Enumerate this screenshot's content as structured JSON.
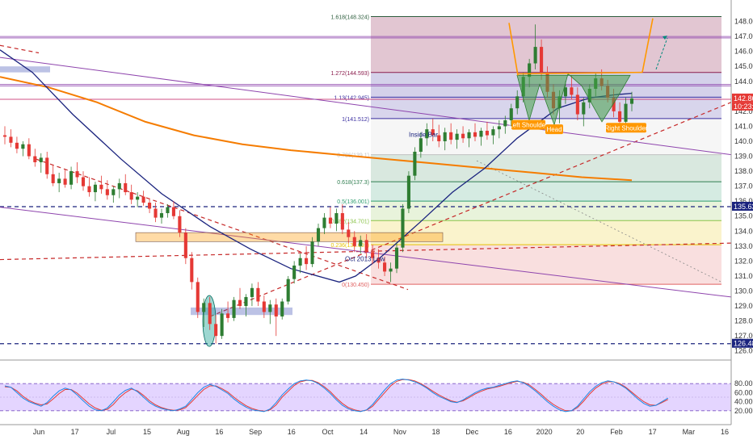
{
  "chart_data": {
    "type": "candlestick",
    "price_axis": {
      "ticks": [
        "148.000",
        "147.000",
        "146.000",
        "145.000",
        "144.000",
        "143.000",
        "142.000",
        "141.000",
        "140.000",
        "139.000",
        "138.000",
        "137.000",
        "136.000",
        "135.000",
        "134.000",
        "133.000",
        "132.000",
        "131.000",
        "130.000",
        "129.000",
        "128.000",
        "127.000",
        "126.000"
      ],
      "range": [
        125.5,
        149.0
      ],
      "current_price": "142.860",
      "timer": "10:23:44",
      "level_tags": [
        "135.632",
        "126.485"
      ],
      "level_values": [
        135.632,
        126.485
      ]
    },
    "time_axis": {
      "labels": [
        "Jun",
        "17",
        "Jul",
        "15",
        "Aug",
        "16",
        "Sep",
        "16",
        "Oct",
        "14",
        "Nov",
        "18",
        "Dec",
        "16",
        "2020",
        "20",
        "Feb",
        "17",
        "Mar",
        "16"
      ]
    },
    "fibonacci": [
      {
        "label": "1.618(148.324)",
        "value": 148.324
      },
      {
        "label": "1.272(144.593)",
        "value": 144.593
      },
      {
        "label": "1.13(142.945)",
        "value": 142.945
      },
      {
        "label": "1(141.512)",
        "value": 141.512
      },
      {
        "label": "0.786(139.1)",
        "value": 139.1
      },
      {
        "label": "0.618(137.3)",
        "value": 137.3
      },
      {
        "label": "0.5(136.001)",
        "value": 136.001
      },
      {
        "label": "0.382(134.701)",
        "value": 134.701
      },
      {
        "label": "0.236(133.091)",
        "value": 133.091
      },
      {
        "label": "0(130.450)",
        "value": 130.45
      }
    ],
    "annotations": {
      "inside_bar": "Inside Bar",
      "low_label": "Oct 2013 Low",
      "left_shoulder": "Left Shoulder",
      "head": "Head",
      "right_shoulder": "Right Shoulder"
    },
    "candles": [
      {
        "o": 140.4,
        "h": 141.0,
        "l": 139.8,
        "c": 140.3
      },
      {
        "o": 140.3,
        "h": 140.8,
        "l": 139.6,
        "c": 139.9
      },
      {
        "o": 139.9,
        "h": 140.3,
        "l": 139.2,
        "c": 139.5
      },
      {
        "o": 139.5,
        "h": 140.0,
        "l": 139.0,
        "c": 139.8
      },
      {
        "o": 139.8,
        "h": 140.2,
        "l": 138.8,
        "c": 139.0
      },
      {
        "o": 139.0,
        "h": 139.5,
        "l": 138.3,
        "c": 138.6
      },
      {
        "o": 138.6,
        "h": 139.2,
        "l": 137.9,
        "c": 138.9
      },
      {
        "o": 138.9,
        "h": 139.3,
        "l": 137.5,
        "c": 137.8
      },
      {
        "o": 137.8,
        "h": 138.4,
        "l": 137.0,
        "c": 137.2
      },
      {
        "o": 137.2,
        "h": 137.9,
        "l": 136.6,
        "c": 137.5
      },
      {
        "o": 137.5,
        "h": 138.1,
        "l": 136.9,
        "c": 137.1
      },
      {
        "o": 137.1,
        "h": 138.3,
        "l": 136.8,
        "c": 138.0
      },
      {
        "o": 138.0,
        "h": 138.6,
        "l": 137.2,
        "c": 137.6
      },
      {
        "o": 137.6,
        "h": 138.0,
        "l": 136.7,
        "c": 137.0
      },
      {
        "o": 137.0,
        "h": 137.6,
        "l": 136.3,
        "c": 136.6
      },
      {
        "o": 136.6,
        "h": 137.3,
        "l": 136.0,
        "c": 137.1
      },
      {
        "o": 137.1,
        "h": 137.7,
        "l": 136.5,
        "c": 136.8
      },
      {
        "o": 136.8,
        "h": 137.4,
        "l": 136.1,
        "c": 136.4
      },
      {
        "o": 136.4,
        "h": 137.0,
        "l": 135.9,
        "c": 136.8
      },
      {
        "o": 136.8,
        "h": 137.5,
        "l": 136.2,
        "c": 137.2
      },
      {
        "o": 137.2,
        "h": 137.8,
        "l": 136.4,
        "c": 136.6
      },
      {
        "o": 136.6,
        "h": 137.1,
        "l": 135.8,
        "c": 136.1
      },
      {
        "o": 136.1,
        "h": 136.6,
        "l": 135.6,
        "c": 136.3
      },
      {
        "o": 136.3,
        "h": 136.7,
        "l": 135.7,
        "c": 135.9
      },
      {
        "o": 135.9,
        "h": 136.2,
        "l": 135.2,
        "c": 135.5
      },
      {
        "o": 135.5,
        "h": 135.9,
        "l": 134.6,
        "c": 134.9
      },
      {
        "o": 134.9,
        "h": 135.5,
        "l": 134.5,
        "c": 135.2
      },
      {
        "o": 135.2,
        "h": 135.8,
        "l": 134.9,
        "c": 135.6
      },
      {
        "o": 135.6,
        "h": 136.0,
        "l": 134.8,
        "c": 135.0
      },
      {
        "o": 135.0,
        "h": 135.4,
        "l": 133.6,
        "c": 133.9
      },
      {
        "o": 133.9,
        "h": 134.2,
        "l": 131.8,
        "c": 132.2
      },
      {
        "o": 132.2,
        "h": 132.6,
        "l": 130.1,
        "c": 130.6
      },
      {
        "o": 130.6,
        "h": 130.9,
        "l": 128.2,
        "c": 128.6
      },
      {
        "o": 128.6,
        "h": 129.5,
        "l": 127.6,
        "c": 129.2
      },
      {
        "o": 129.2,
        "h": 129.6,
        "l": 127.4,
        "c": 127.8
      },
      {
        "o": 127.8,
        "h": 128.4,
        "l": 126.5,
        "c": 127.0
      },
      {
        "o": 127.0,
        "h": 128.8,
        "l": 126.8,
        "c": 128.5
      },
      {
        "o": 128.5,
        "h": 129.3,
        "l": 127.9,
        "c": 128.2
      },
      {
        "o": 128.2,
        "h": 129.6,
        "l": 128.0,
        "c": 129.4
      },
      {
        "o": 129.4,
        "h": 130.2,
        "l": 128.8,
        "c": 129.0
      },
      {
        "o": 129.0,
        "h": 129.8,
        "l": 128.3,
        "c": 129.6
      },
      {
        "o": 129.6,
        "h": 130.5,
        "l": 129.0,
        "c": 130.2
      },
      {
        "o": 130.2,
        "h": 130.6,
        "l": 129.0,
        "c": 129.3
      },
      {
        "o": 129.3,
        "h": 129.7,
        "l": 128.2,
        "c": 128.6
      },
      {
        "o": 128.6,
        "h": 129.4,
        "l": 127.8,
        "c": 129.1
      },
      {
        "o": 129.1,
        "h": 129.5,
        "l": 127.0,
        "c": 128.3
      },
      {
        "o": 128.3,
        "h": 129.5,
        "l": 128.1,
        "c": 129.3
      },
      {
        "o": 129.3,
        "h": 131.0,
        "l": 129.1,
        "c": 130.8
      },
      {
        "o": 130.8,
        "h": 132.0,
        "l": 130.5,
        "c": 131.7
      },
      {
        "o": 131.7,
        "h": 132.5,
        "l": 131.2,
        "c": 132.2
      },
      {
        "o": 132.2,
        "h": 133.0,
        "l": 131.4,
        "c": 131.8
      },
      {
        "o": 131.8,
        "h": 133.6,
        "l": 131.6,
        "c": 133.3
      },
      {
        "o": 133.3,
        "h": 134.5,
        "l": 133.0,
        "c": 134.2
      },
      {
        "o": 134.2,
        "h": 135.2,
        "l": 133.8,
        "c": 134.9
      },
      {
        "o": 134.9,
        "h": 135.6,
        "l": 134.2,
        "c": 134.5
      },
      {
        "o": 134.5,
        "h": 135.5,
        "l": 134.0,
        "c": 135.2
      },
      {
        "o": 135.2,
        "h": 135.8,
        "l": 133.8,
        "c": 134.1
      },
      {
        "o": 134.1,
        "h": 134.6,
        "l": 133.2,
        "c": 133.6
      },
      {
        "o": 133.6,
        "h": 134.0,
        "l": 132.6,
        "c": 133.0
      },
      {
        "o": 133.0,
        "h": 133.7,
        "l": 132.5,
        "c": 133.4
      },
      {
        "o": 133.4,
        "h": 133.8,
        "l": 132.2,
        "c": 132.6
      },
      {
        "o": 132.6,
        "h": 133.1,
        "l": 131.8,
        "c": 132.2
      },
      {
        "o": 132.2,
        "h": 132.8,
        "l": 131.5,
        "c": 131.9
      },
      {
        "o": 131.9,
        "h": 132.3,
        "l": 131.0,
        "c": 131.3
      },
      {
        "o": 131.3,
        "h": 131.9,
        "l": 130.6,
        "c": 131.5
      },
      {
        "o": 131.5,
        "h": 133.2,
        "l": 131.2,
        "c": 132.9
      },
      {
        "o": 132.9,
        "h": 135.8,
        "l": 132.6,
        "c": 135.5
      },
      {
        "o": 135.5,
        "h": 138.0,
        "l": 135.2,
        "c": 137.7
      },
      {
        "o": 137.7,
        "h": 139.6,
        "l": 137.4,
        "c": 139.3
      },
      {
        "o": 139.3,
        "h": 140.6,
        "l": 138.9,
        "c": 140.2
      },
      {
        "o": 140.2,
        "h": 141.2,
        "l": 139.7,
        "c": 140.8
      },
      {
        "o": 140.8,
        "h": 141.5,
        "l": 140.0,
        "c": 140.4
      },
      {
        "o": 140.4,
        "h": 141.1,
        "l": 139.6,
        "c": 140.0
      },
      {
        "o": 140.0,
        "h": 140.9,
        "l": 139.4,
        "c": 140.6
      },
      {
        "o": 140.6,
        "h": 141.2,
        "l": 139.8,
        "c": 140.1
      },
      {
        "o": 140.1,
        "h": 140.8,
        "l": 139.5,
        "c": 140.5
      },
      {
        "o": 140.5,
        "h": 141.0,
        "l": 139.9,
        "c": 140.2
      },
      {
        "o": 140.2,
        "h": 140.8,
        "l": 139.6,
        "c": 140.6
      },
      {
        "o": 140.6,
        "h": 141.2,
        "l": 140.0,
        "c": 140.3
      },
      {
        "o": 140.3,
        "h": 140.9,
        "l": 139.7,
        "c": 140.7
      },
      {
        "o": 140.7,
        "h": 141.3,
        "l": 140.1,
        "c": 140.4
      },
      {
        "o": 140.4,
        "h": 141.0,
        "l": 139.8,
        "c": 140.8
      },
      {
        "o": 140.8,
        "h": 141.4,
        "l": 140.2,
        "c": 141.0
      },
      {
        "o": 141.0,
        "h": 141.7,
        "l": 140.5,
        "c": 141.4
      },
      {
        "o": 141.4,
        "h": 142.5,
        "l": 141.0,
        "c": 142.2
      },
      {
        "o": 142.2,
        "h": 143.4,
        "l": 141.8,
        "c": 143.0
      },
      {
        "o": 143.0,
        "h": 144.6,
        "l": 142.6,
        "c": 144.3
      },
      {
        "o": 144.3,
        "h": 145.5,
        "l": 143.6,
        "c": 145.2
      },
      {
        "o": 145.2,
        "h": 147.8,
        "l": 144.8,
        "c": 146.3
      },
      {
        "o": 146.3,
        "h": 146.8,
        "l": 144.1,
        "c": 144.6
      },
      {
        "o": 144.6,
        "h": 145.0,
        "l": 142.9,
        "c": 143.3
      },
      {
        "o": 143.3,
        "h": 143.8,
        "l": 141.8,
        "c": 142.2
      },
      {
        "o": 142.2,
        "h": 143.4,
        "l": 141.2,
        "c": 143.0
      },
      {
        "o": 143.0,
        "h": 144.0,
        "l": 142.5,
        "c": 143.6
      },
      {
        "o": 143.6,
        "h": 144.4,
        "l": 142.8,
        "c": 143.1
      },
      {
        "o": 143.1,
        "h": 143.6,
        "l": 141.4,
        "c": 141.8
      },
      {
        "o": 141.8,
        "h": 142.9,
        "l": 141.0,
        "c": 142.6
      },
      {
        "o": 142.6,
        "h": 143.8,
        "l": 142.2,
        "c": 143.5
      },
      {
        "o": 143.5,
        "h": 144.6,
        "l": 143.0,
        "c": 144.2
      },
      {
        "o": 144.2,
        "h": 144.8,
        "l": 143.4,
        "c": 143.7
      },
      {
        "o": 143.7,
        "h": 144.1,
        "l": 142.6,
        "c": 142.9
      },
      {
        "o": 142.9,
        "h": 143.5,
        "l": 141.6,
        "c": 142.0
      },
      {
        "o": 142.0,
        "h": 142.6,
        "l": 140.9,
        "c": 141.3
      },
      {
        "o": 141.3,
        "h": 142.9,
        "l": 141.0,
        "c": 142.5
      },
      {
        "o": 142.5,
        "h": 143.3,
        "l": 142.0,
        "c": 142.86
      }
    ],
    "stochastic": {
      "axis_ticks": [
        "80.00",
        "60.00",
        "40.00",
        "20.00"
      ],
      "range": [
        0,
        100
      ],
      "k": [
        75,
        72,
        60,
        48,
        40,
        35,
        30,
        38,
        52,
        64,
        70,
        66,
        55,
        42,
        30,
        22,
        20,
        26,
        40,
        55,
        65,
        70,
        62,
        50,
        38,
        30,
        25,
        22,
        20,
        24,
        30,
        45,
        60,
        72,
        78,
        74,
        66,
        58,
        46,
        36,
        28,
        22,
        20,
        18,
        24,
        38,
        55,
        68,
        80,
        86,
        88,
        86,
        80,
        70,
        58,
        44,
        32,
        24,
        20,
        18,
        22,
        34,
        50,
        66,
        80,
        88,
        90,
        88,
        84,
        78,
        70,
        60,
        52,
        46,
        40,
        38,
        44,
        52,
        60,
        66,
        70,
        72,
        76,
        80,
        84,
        86,
        82,
        74,
        64,
        52,
        40,
        30,
        22,
        18,
        20,
        30,
        46,
        62,
        74,
        82,
        86,
        84,
        78,
        70,
        58,
        46,
        36,
        30,
        32,
        40,
        48
      ],
      "d": [
        73,
        72,
        64,
        52,
        43,
        37,
        33,
        35,
        46,
        58,
        67,
        67,
        59,
        47,
        35,
        26,
        21,
        23,
        34,
        49,
        60,
        68,
        64,
        54,
        42,
        33,
        27,
        23,
        21,
        22,
        27,
        40,
        54,
        67,
        75,
        75,
        69,
        61,
        50,
        40,
        31,
        25,
        21,
        19,
        22,
        33,
        50,
        63,
        76,
        84,
        87,
        87,
        82,
        73,
        62,
        48,
        36,
        27,
        22,
        19,
        21,
        30,
        45,
        60,
        75,
        85,
        89,
        89,
        86,
        80,
        72,
        63,
        55,
        48,
        42,
        39,
        42,
        49,
        57,
        63,
        68,
        71,
        74,
        78,
        82,
        85,
        83,
        77,
        67,
        56,
        44,
        34,
        26,
        20,
        20,
        27,
        41,
        57,
        70,
        79,
        84,
        84,
        80,
        72,
        61,
        50,
        40,
        33,
        32,
        38,
        45
      ]
    },
    "series": [
      {
        "name": "",
        "color": "#1a237e"
      },
      {
        "name": "",
        "color": "#f57c00"
      },
      {
        "name": "",
        "color": "#2e7d32"
      },
      {
        "name": "",
        "color": "#e53935"
      }
    ]
  }
}
